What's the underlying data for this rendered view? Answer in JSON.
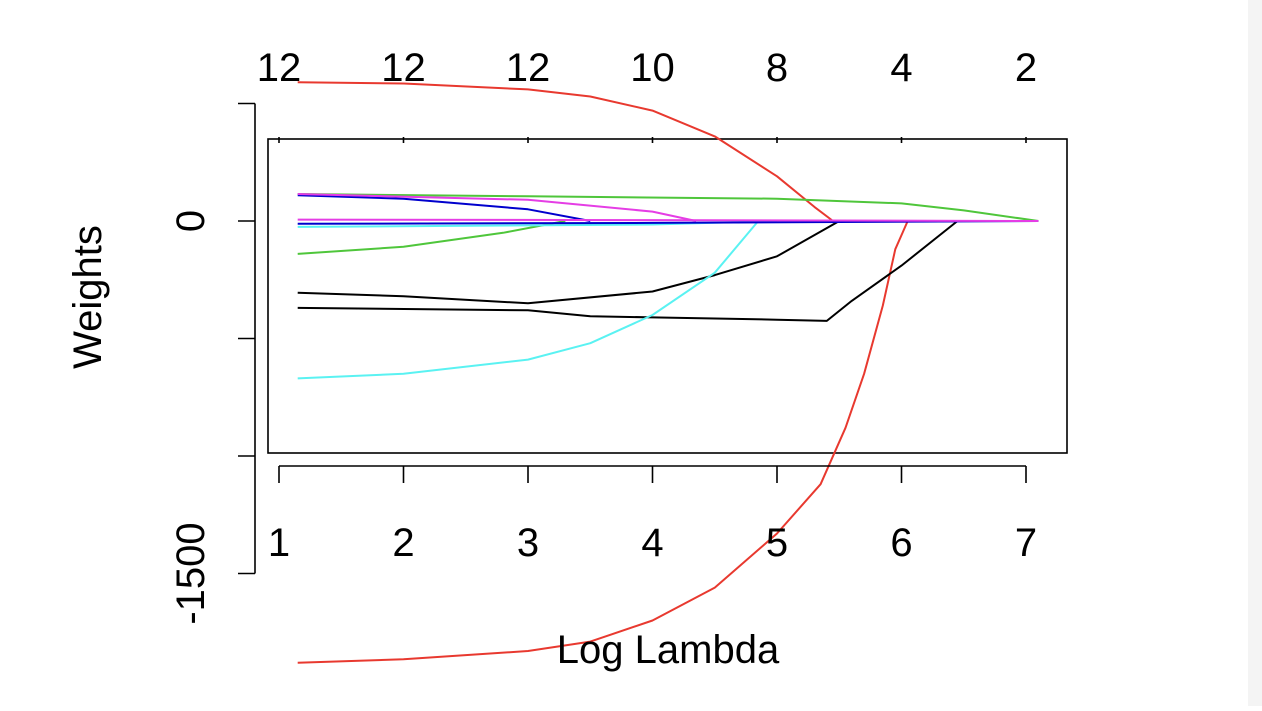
{
  "chart_data": {
    "type": "line",
    "title": "",
    "xlabel": "Log Lambda",
    "ylabel": "Weights",
    "xlim": [
      1.0,
      7.3
    ],
    "ylim": [
      -1980,
      720
    ],
    "x_ticks": [
      1,
      2,
      3,
      4,
      5,
      6,
      7
    ],
    "y_ticks": [
      -1500,
      -1000,
      -500,
      0,
      500
    ],
    "y_tick_labels": [
      {
        "value": -1500,
        "label": "-1500"
      },
      {
        "value": 0,
        "label": "0"
      }
    ],
    "top_axis": {
      "label": "",
      "ticks": [
        {
          "x": 1.0,
          "label": "12"
        },
        {
          "x": 2.0,
          "label": "12"
        },
        {
          "x": 3.0,
          "label": "12"
        },
        {
          "x": 4.0,
          "label": "10"
        },
        {
          "x": 5.0,
          "label": "8"
        },
        {
          "x": 6.0,
          "label": "4"
        },
        {
          "x": 7.0,
          "label": "2"
        }
      ]
    },
    "grid": false,
    "legend": "none",
    "series": [
      {
        "color": "#e8392f",
        "x": [
          1.15,
          2.0,
          3.0,
          3.5,
          4.0,
          4.5,
          5.0,
          5.3,
          5.45
        ],
        "y": [
          590,
          585,
          560,
          530,
          470,
          360,
          190,
          60,
          0
        ]
      },
      {
        "color": "#e8392f",
        "x": [
          1.15,
          2.0,
          3.0,
          3.5,
          4.0,
          4.5,
          5.0,
          5.35,
          5.55,
          5.7,
          5.85,
          5.95,
          6.0,
          6.05
        ],
        "y": [
          -1880,
          -1865,
          -1830,
          -1790,
          -1700,
          -1560,
          -1330,
          -1120,
          -880,
          -650,
          -360,
          -120,
          -60,
          0
        ]
      },
      {
        "color": "#4fc63b",
        "x": [
          1.15,
          3.0,
          5.0,
          6.0,
          6.5,
          7.1
        ],
        "y": [
          115,
          105,
          95,
          75,
          45,
          0
        ]
      },
      {
        "color": "#4fc63b",
        "x": [
          1.15,
          2.0,
          2.8,
          3.3
        ],
        "y": [
          -140,
          -110,
          -50,
          0
        ]
      },
      {
        "color": "#0000cd",
        "x": [
          1.15,
          2.0,
          3.0,
          3.5
        ],
        "y": [
          110,
          95,
          50,
          0
        ]
      },
      {
        "color": "#e53de5",
        "x": [
          1.15,
          3.0,
          4.0,
          4.35
        ],
        "y": [
          115,
          90,
          40,
          0
        ]
      },
      {
        "color": "#000000",
        "x": [
          1.15,
          3.0,
          3.5,
          4.0,
          4.5,
          5.0,
          5.4,
          5.6,
          6.0,
          6.45
        ],
        "y": [
          -370,
          -380,
          -405,
          -410,
          -415,
          -420,
          -425,
          -340,
          -190,
          0
        ]
      },
      {
        "color": "#000000",
        "x": [
          1.15,
          2.0,
          3.0,
          4.0,
          4.5,
          5.0,
          5.5
        ],
        "y": [
          -305,
          -320,
          -350,
          -300,
          -230,
          -150,
          0
        ]
      },
      {
        "color": "#5af2f2",
        "x": [
          1.15,
          2.0,
          3.0,
          3.5,
          4.0,
          4.5,
          4.85
        ],
        "y": [
          -670,
          -650,
          -590,
          -520,
          -400,
          -220,
          0
        ]
      },
      {
        "color": "#5af2f2",
        "x": [
          1.15,
          4.0,
          5.0
        ],
        "y": [
          -25,
          -15,
          0
        ]
      },
      {
        "color": "#0000cd",
        "x": [
          1.15,
          4.0,
          7.1
        ],
        "y": [
          -12,
          -8,
          0
        ]
      },
      {
        "color": "#e53de5",
        "x": [
          1.15,
          4.0,
          7.1
        ],
        "y": [
          6,
          4,
          0
        ]
      }
    ]
  }
}
